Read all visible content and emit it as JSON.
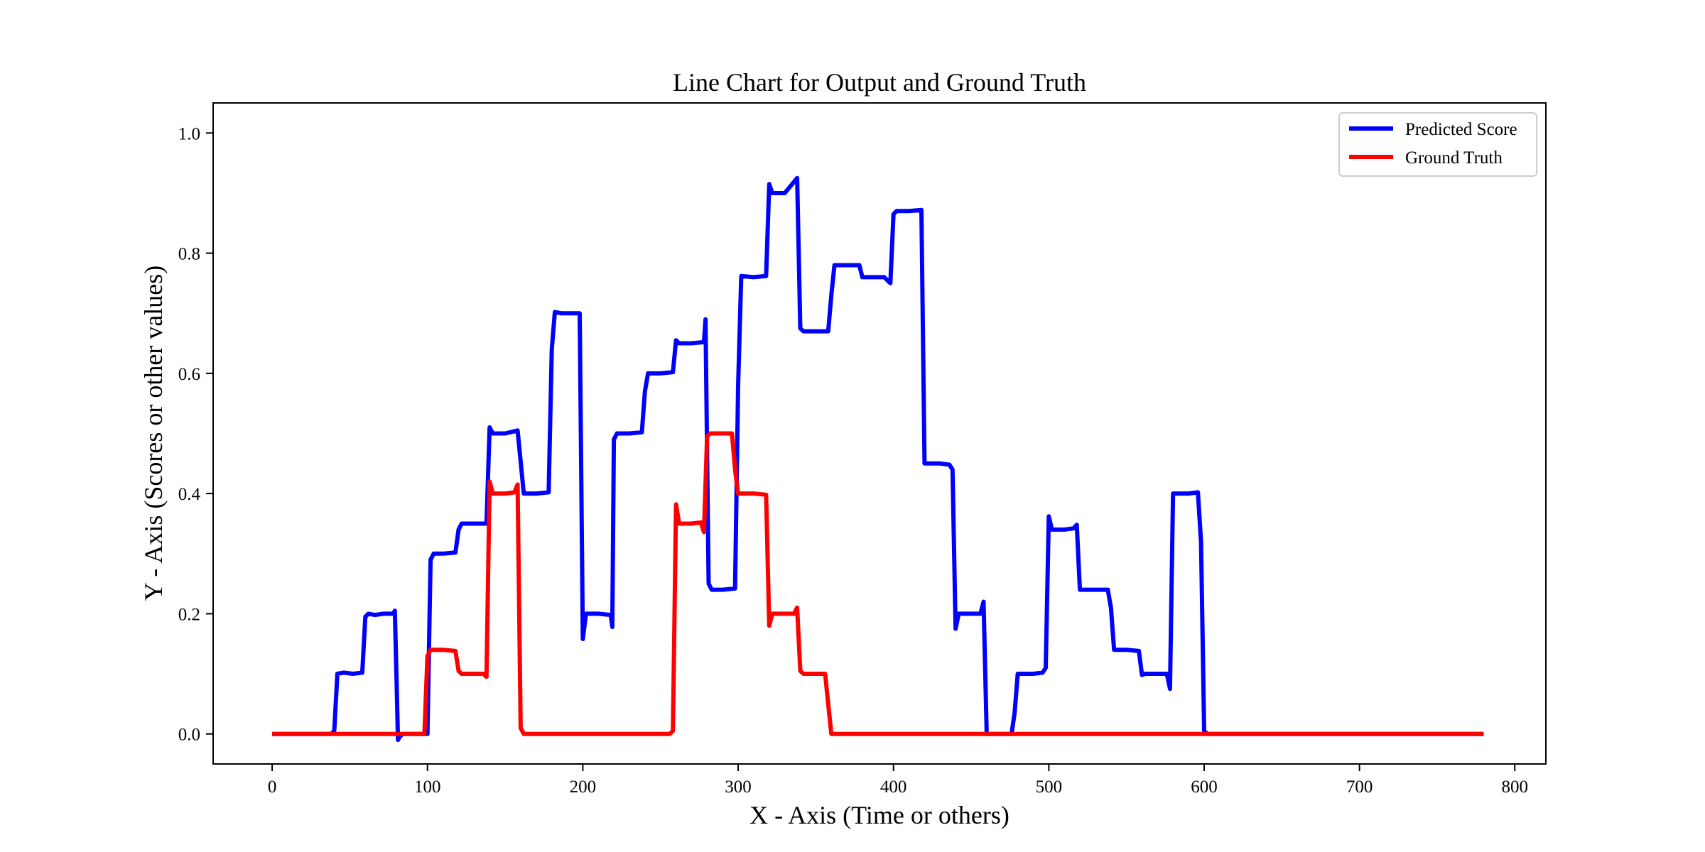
{
  "chart_data": {
    "type": "line",
    "title": "Line Chart for Output and Ground Truth",
    "xlabel": "X - Axis (Time or others)",
    "ylabel": "Y - Axis (Scores or other values)",
    "xlim": [
      -38,
      820
    ],
    "ylim": [
      -0.05,
      1.05
    ],
    "xticks": [
      0,
      100,
      200,
      300,
      400,
      500,
      600,
      700,
      800
    ],
    "yticks": [
      0.0,
      0.2,
      0.4,
      0.6,
      0.8,
      1.0
    ],
    "ytick_labels": [
      "0.0",
      "0.2",
      "0.4",
      "0.6",
      "0.8",
      "1.0"
    ],
    "grid": false,
    "legend_position": "top-right",
    "series": [
      {
        "name": "Predicted Score",
        "color": "#0000ff",
        "points": [
          [
            0,
            0
          ],
          [
            38,
            0
          ],
          [
            40,
            0.005
          ],
          [
            42,
            0.1
          ],
          [
            46,
            0.102
          ],
          [
            52,
            0.1
          ],
          [
            58,
            0.102
          ],
          [
            60,
            0.195
          ],
          [
            62,
            0.2
          ],
          [
            66,
            0.198
          ],
          [
            72,
            0.2
          ],
          [
            78,
            0.2
          ],
          [
            79,
            0.205
          ],
          [
            80,
            0.1
          ],
          [
            81,
            -0.01
          ],
          [
            82,
            -0.005
          ],
          [
            84,
            0
          ],
          [
            100,
            0
          ],
          [
            102,
            0.29
          ],
          [
            104,
            0.3
          ],
          [
            110,
            0.3
          ],
          [
            118,
            0.302
          ],
          [
            120,
            0.34
          ],
          [
            122,
            0.35
          ],
          [
            130,
            0.35
          ],
          [
            138,
            0.35
          ],
          [
            140,
            0.51
          ],
          [
            142,
            0.5
          ],
          [
            150,
            0.5
          ],
          [
            158,
            0.505
          ],
          [
            162,
            0.4
          ],
          [
            170,
            0.4
          ],
          [
            178,
            0.402
          ],
          [
            180,
            0.64
          ],
          [
            182,
            0.702
          ],
          [
            186,
            0.7
          ],
          [
            192,
            0.7
          ],
          [
            198,
            0.7
          ],
          [
            200,
            0.158
          ],
          [
            202,
            0.2
          ],
          [
            210,
            0.2
          ],
          [
            218,
            0.198
          ],
          [
            219,
            0.178
          ],
          [
            220,
            0.49
          ],
          [
            222,
            0.5
          ],
          [
            230,
            0.5
          ],
          [
            238,
            0.502
          ],
          [
            240,
            0.57
          ],
          [
            242,
            0.6
          ],
          [
            250,
            0.6
          ],
          [
            258,
            0.602
          ],
          [
            260,
            0.655
          ],
          [
            262,
            0.65
          ],
          [
            270,
            0.65
          ],
          [
            278,
            0.652
          ],
          [
            279,
            0.69
          ],
          [
            281,
            0.25
          ],
          [
            283,
            0.24
          ],
          [
            290,
            0.24
          ],
          [
            298,
            0.242
          ],
          [
            300,
            0.58
          ],
          [
            302,
            0.762
          ],
          [
            310,
            0.76
          ],
          [
            318,
            0.762
          ],
          [
            320,
            0.915
          ],
          [
            322,
            0.9
          ],
          [
            330,
            0.9
          ],
          [
            338,
            0.925
          ],
          [
            340,
            0.675
          ],
          [
            342,
            0.67
          ],
          [
            350,
            0.67
          ],
          [
            358,
            0.67
          ],
          [
            360,
            0.73
          ],
          [
            362,
            0.78
          ],
          [
            370,
            0.78
          ],
          [
            378,
            0.78
          ],
          [
            380,
            0.76
          ],
          [
            386,
            0.76
          ],
          [
            394,
            0.76
          ],
          [
            398,
            0.75
          ],
          [
            400,
            0.865
          ],
          [
            402,
            0.87
          ],
          [
            410,
            0.87
          ],
          [
            418,
            0.872
          ],
          [
            420,
            0.45
          ],
          [
            430,
            0.45
          ],
          [
            436,
            0.448
          ],
          [
            438,
            0.44
          ],
          [
            440,
            0.175
          ],
          [
            442,
            0.2
          ],
          [
            450,
            0.2
          ],
          [
            456,
            0.2
          ],
          [
            458,
            0.22
          ],
          [
            460,
            0
          ],
          [
            476,
            0
          ],
          [
            478,
            0.035
          ],
          [
            480,
            0.1
          ],
          [
            490,
            0.1
          ],
          [
            496,
            0.102
          ],
          [
            498,
            0.11
          ],
          [
            500,
            0.362
          ],
          [
            502,
            0.34
          ],
          [
            510,
            0.34
          ],
          [
            516,
            0.342
          ],
          [
            518,
            0.348
          ],
          [
            520,
            0.24
          ],
          [
            530,
            0.24
          ],
          [
            538,
            0.24
          ],
          [
            540,
            0.21
          ],
          [
            542,
            0.14
          ],
          [
            550,
            0.14
          ],
          [
            558,
            0.138
          ],
          [
            560,
            0.098
          ],
          [
            562,
            0.1
          ],
          [
            570,
            0.1
          ],
          [
            576,
            0.1
          ],
          [
            578,
            0.075
          ],
          [
            580,
            0.4
          ],
          [
            590,
            0.4
          ],
          [
            596,
            0.402
          ],
          [
            598,
            0.32
          ],
          [
            600,
            0.005
          ],
          [
            602,
            0
          ],
          [
            780,
            0
          ]
        ]
      },
      {
        "name": "Ground Truth",
        "color": "#ff0000",
        "points": [
          [
            0,
            0
          ],
          [
            96,
            0
          ],
          [
            98,
            0
          ],
          [
            100,
            0.13
          ],
          [
            102,
            0.14
          ],
          [
            110,
            0.14
          ],
          [
            118,
            0.138
          ],
          [
            120,
            0.105
          ],
          [
            122,
            0.1
          ],
          [
            130,
            0.1
          ],
          [
            136,
            0.1
          ],
          [
            138,
            0.095
          ],
          [
            140,
            0.42
          ],
          [
            142,
            0.4
          ],
          [
            150,
            0.4
          ],
          [
            156,
            0.402
          ],
          [
            158,
            0.415
          ],
          [
            160,
            0.01
          ],
          [
            162,
            0
          ],
          [
            256,
            0
          ],
          [
            258,
            0.005
          ],
          [
            260,
            0.382
          ],
          [
            262,
            0.35
          ],
          [
            270,
            0.35
          ],
          [
            276,
            0.352
          ],
          [
            278,
            0.336
          ],
          [
            280,
            0.495
          ],
          [
            282,
            0.5
          ],
          [
            290,
            0.5
          ],
          [
            296,
            0.5
          ],
          [
            298,
            0.44
          ],
          [
            300,
            0.4
          ],
          [
            310,
            0.4
          ],
          [
            318,
            0.398
          ],
          [
            320,
            0.18
          ],
          [
            322,
            0.2
          ],
          [
            330,
            0.2
          ],
          [
            336,
            0.2
          ],
          [
            338,
            0.21
          ],
          [
            340,
            0.105
          ],
          [
            342,
            0.1
          ],
          [
            350,
            0.1
          ],
          [
            356,
            0.1
          ],
          [
            358,
            0.05
          ],
          [
            360,
            0
          ],
          [
            780,
            0
          ]
        ]
      }
    ]
  }
}
